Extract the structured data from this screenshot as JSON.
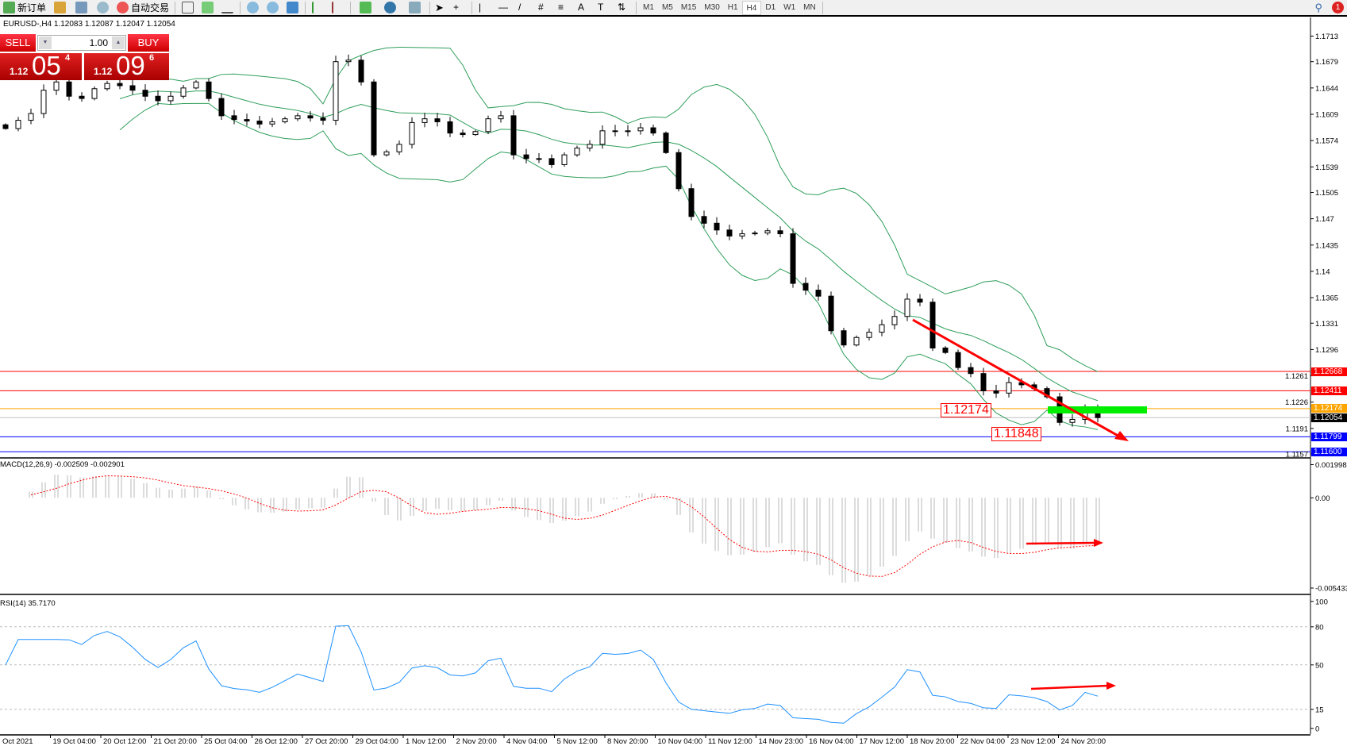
{
  "toolbar": {
    "new_order": "新订单",
    "auto_trading": "自动交易",
    "icons": [
      "new-order-icon",
      "market-watch-icon",
      "navigator-icon",
      "signals-icon",
      "auto-trading-icon",
      "bar-chart-icon",
      "candlestick-icon",
      "line-chart-icon",
      "zoom-in-icon",
      "zoom-out-icon",
      "tile-windows-icon",
      "autoscroll-icon",
      "chart-shift-icon",
      "indicators-icon",
      "periods-icon",
      "templates-icon",
      "cursor-icon",
      "crosshair-icon",
      "vertical-line-icon",
      "horizontal-line-icon",
      "trendline-icon",
      "equidistant-channel-icon",
      "fibonacci-icon",
      "text-icon",
      "text-label-icon",
      "arrows-icon"
    ],
    "timeframes": [
      "M1",
      "M5",
      "M15",
      "M30",
      "H1",
      "H4",
      "D1",
      "W1",
      "MN"
    ],
    "active_timeframe": "H4",
    "search_icon": "search-icon",
    "notification_count": "1"
  },
  "chart_header": "EURUSD-,H4  1.12083 1.12087 1.12047 1.12054",
  "trade_panel": {
    "sell": "SELL",
    "buy": "BUY",
    "lot": "1.00",
    "bid_small": "1.12",
    "bid_large": "05",
    "bid_pip": "4",
    "ask_small": "1.12",
    "ask_large": "09",
    "ask_pip": "6"
  },
  "indicators": {
    "macd": "MACD(12,26,9) -0.002509 -0.002901",
    "rsi": "RSI(14) 35.7170"
  },
  "colors": {
    "bands": "#2e9e5a",
    "candle": "#000000",
    "macd_hist": "#b8b8b8",
    "macd_signal": "#ff0000",
    "rsi": "#1e90ff",
    "trend": "#ff0000",
    "zone": "#00ee00"
  },
  "chart_data": {
    "type": "candlestick",
    "symbol": "EURUSD-",
    "timeframe": "H4",
    "last_ohlc": {
      "open": 1.12083,
      "high": 1.12087,
      "low": 1.12047,
      "close": 1.12054
    },
    "closes": [
      1.159,
      1.1601,
      1.161,
      1.1641,
      1.1652,
      1.1633,
      1.163,
      1.1643,
      1.165,
      1.1647,
      1.1641,
      1.1633,
      1.1627,
      1.1633,
      1.1644,
      1.1652,
      1.163,
      1.1607,
      1.1602,
      1.16,
      1.1596,
      1.1599,
      1.1603,
      1.1607,
      1.1604,
      1.1601,
      1.1679,
      1.1681,
      1.1652,
      1.1555,
      1.1559,
      1.1569,
      1.1598,
      1.1603,
      1.1599,
      1.1584,
      1.1582,
      1.1586,
      1.1603,
      1.1607,
      1.1555,
      1.155,
      1.155,
      1.1542,
      1.1555,
      1.1564,
      1.1569,
      1.1587,
      1.1586,
      1.1587,
      1.1591,
      1.1584,
      1.1558,
      1.151,
      1.1473,
      1.1464,
      1.1455,
      1.1447,
      1.145,
      1.1451,
      1.1454,
      1.145,
      1.1384,
      1.1375,
      1.1367,
      1.1321,
      1.1302,
      1.1312,
      1.1319,
      1.1329,
      1.134,
      1.1363,
      1.1359,
      1.1298,
      1.1292,
      1.1272,
      1.1264,
      1.1241,
      1.1238,
      1.1252,
      1.1249,
      1.1244,
      1.1233,
      1.1199,
      1.1203,
      1.1215,
      1.12054
    ],
    "price_ticks": [
      1.1713,
      1.1679,
      1.1644,
      1.1609,
      1.1574,
      1.1539,
      1.1505,
      1.147,
      1.1435,
      1.14,
      1.1365,
      1.1331,
      1.1296,
      1.1261,
      1.1226,
      1.1191,
      1.1157
    ],
    "time_ticks": [
      "Oct 2021",
      "19 Oct 04:00",
      "20 Oct 12:00",
      "21 Oct 20:00",
      "25 Oct 04:00",
      "26 Oct 12:00",
      "27 Oct 20:00",
      "29 Oct 04:00",
      "1 Nov 12:00",
      "2 Nov 20:00",
      "4 Nov 04:00",
      "5 Nov 12:00",
      "8 Nov 20:00",
      "10 Nov 04:00",
      "11 Nov 12:00",
      "14 Nov 23:00",
      "16 Nov 04:00",
      "17 Nov 12:00",
      "18 Nov 20:00",
      "22 Nov 04:00",
      "23 Nov 12:00",
      "24 Nov 20:00"
    ],
    "levels": [
      {
        "price": 1.12668,
        "label": "1.12668",
        "color": "#ff0000"
      },
      {
        "price": 1.12411,
        "label": "1.12411",
        "color": "#ff0000"
      },
      {
        "price": 1.12174,
        "label": "1.12174",
        "color": "#ffa500"
      },
      {
        "price": 1.12054,
        "label": "1.12054",
        "color": "#000000",
        "line": "#c0c0c0"
      },
      {
        "price": 1.11799,
        "label": "1.11799",
        "color": "#0000ff"
      },
      {
        "price": 1.116,
        "label": "1.11600",
        "color": "#0000ff"
      }
    ],
    "annotations": [
      "1.12174",
      "1.11848"
    ],
    "macd_axis": {
      "max": "0.001998",
      "zero": "0.00",
      "min": "-0.005433"
    },
    "rsi_axis": [
      "100",
      "80",
      "50",
      "15",
      "0"
    ],
    "rsi_levels": [
      80,
      50,
      15
    ]
  }
}
